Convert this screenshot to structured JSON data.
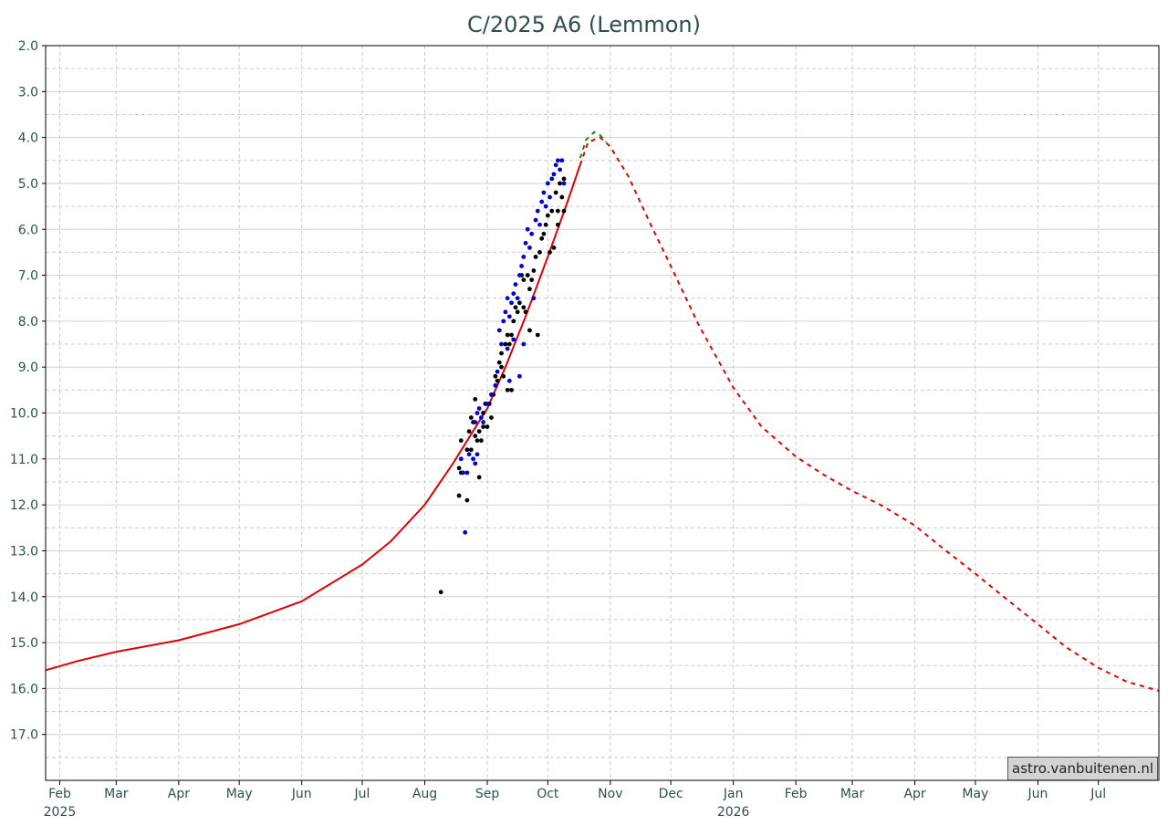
{
  "chart_data": {
    "type": "scatter",
    "title": "C/2025 A6 (Lemmon)",
    "xlabel": "",
    "ylabel": "",
    "x_range": [
      "2025-01-25",
      "2026-07-31"
    ],
    "ylim": [
      2.0,
      18.0
    ],
    "y_inverted": true,
    "y_ticks": [
      "2.0",
      "3.0",
      "4.0",
      "5.0",
      "6.0",
      "7.0",
      "8.0",
      "9.0",
      "10.0",
      "11.0",
      "12.0",
      "13.0",
      "14.0",
      "15.0",
      "16.0",
      "17.0"
    ],
    "x_ticks": [
      {
        "date": "2025-02-01",
        "label": "Feb",
        "year": "2025"
      },
      {
        "date": "2025-03-01",
        "label": "Mar",
        "year": ""
      },
      {
        "date": "2025-04-01",
        "label": "Apr",
        "year": ""
      },
      {
        "date": "2025-05-01",
        "label": "May",
        "year": ""
      },
      {
        "date": "2025-06-01",
        "label": "Jun",
        "year": ""
      },
      {
        "date": "2025-07-01",
        "label": "Jul",
        "year": ""
      },
      {
        "date": "2025-08-01",
        "label": "Aug",
        "year": ""
      },
      {
        "date": "2025-09-01",
        "label": "Sep",
        "year": ""
      },
      {
        "date": "2025-10-01",
        "label": "Oct",
        "year": ""
      },
      {
        "date": "2025-11-01",
        "label": "Nov",
        "year": ""
      },
      {
        "date": "2025-12-01",
        "label": "Dec",
        "year": ""
      },
      {
        "date": "2026-01-01",
        "label": "Jan",
        "year": "2026"
      },
      {
        "date": "2026-02-01",
        "label": "Feb",
        "year": ""
      },
      {
        "date": "2026-03-01",
        "label": "Mar",
        "year": ""
      },
      {
        "date": "2026-04-01",
        "label": "Apr",
        "year": ""
      },
      {
        "date": "2026-05-01",
        "label": "May",
        "year": ""
      },
      {
        "date": "2026-06-01",
        "label": "Jun",
        "year": ""
      },
      {
        "date": "2026-07-01",
        "label": "Jul",
        "year": ""
      }
    ],
    "grid": true,
    "series": [
      {
        "style": "solid",
        "color": "#e00000",
        "points": [
          [
            "2025-01-25",
            15.6
          ],
          [
            "2025-02-10",
            15.4
          ],
          [
            "2025-03-01",
            15.2
          ],
          [
            "2025-04-01",
            14.95
          ],
          [
            "2025-05-01",
            14.6
          ],
          [
            "2025-06-01",
            14.1
          ],
          [
            "2025-07-01",
            13.3
          ],
          [
            "2025-07-15",
            12.8
          ],
          [
            "2025-08-01",
            12.0
          ],
          [
            "2025-08-15",
            11.1
          ],
          [
            "2025-09-01",
            9.9
          ],
          [
            "2025-09-10",
            9.0
          ],
          [
            "2025-09-20",
            7.9
          ],
          [
            "2025-10-01",
            6.6
          ],
          [
            "2025-10-10",
            5.5
          ],
          [
            "2025-10-17",
            4.6
          ]
        ]
      },
      {
        "style": "dashed",
        "color": "#e00000",
        "points": [
          [
            "2025-10-17",
            4.6
          ],
          [
            "2025-10-21",
            4.1
          ],
          [
            "2025-10-27",
            4.0
          ],
          [
            "2025-11-01",
            4.2
          ],
          [
            "2025-11-10",
            4.85
          ],
          [
            "2025-11-20",
            5.8
          ],
          [
            "2025-12-01",
            6.8
          ],
          [
            "2025-12-15",
            8.1
          ],
          [
            "2026-01-01",
            9.45
          ],
          [
            "2026-01-15",
            10.3
          ],
          [
            "2026-02-01",
            10.95
          ],
          [
            "2026-02-15",
            11.35
          ],
          [
            "2026-03-01",
            11.7
          ],
          [
            "2026-03-15",
            12.0
          ],
          [
            "2026-04-01",
            12.45
          ],
          [
            "2026-04-15",
            12.95
          ],
          [
            "2026-05-01",
            13.5
          ],
          [
            "2026-05-15",
            14.0
          ],
          [
            "2026-06-01",
            14.6
          ],
          [
            "2026-06-15",
            15.1
          ],
          [
            "2026-07-01",
            15.55
          ],
          [
            "2026-07-15",
            15.85
          ],
          [
            "2026-07-31",
            16.05
          ]
        ]
      },
      {
        "style": "dashed",
        "color": "#1a8a1a",
        "points": [
          [
            "2025-10-17",
            4.45
          ],
          [
            "2025-10-20",
            4.05
          ],
          [
            "2025-10-24",
            3.88
          ],
          [
            "2025-10-27",
            3.95
          ],
          [
            "2025-10-30",
            4.1
          ]
        ]
      },
      {
        "style": "dots",
        "color": "#000000",
        "points": [
          [
            "2025-08-09",
            13.9
          ],
          [
            "2025-08-18",
            11.8
          ],
          [
            "2025-08-18",
            11.2
          ],
          [
            "2025-08-19",
            11.3
          ],
          [
            "2025-08-19",
            10.6
          ],
          [
            "2025-08-22",
            11.9
          ],
          [
            "2025-08-22",
            10.8
          ],
          [
            "2025-08-23",
            10.4
          ],
          [
            "2025-08-24",
            10.1
          ],
          [
            "2025-08-24",
            10.8
          ],
          [
            "2025-08-25",
            10.2
          ],
          [
            "2025-08-26",
            9.7
          ],
          [
            "2025-08-26",
            10.5
          ],
          [
            "2025-08-27",
            10.6
          ],
          [
            "2025-08-28",
            10.4
          ],
          [
            "2025-08-28",
            11.4
          ],
          [
            "2025-08-29",
            10.6
          ],
          [
            "2025-08-30",
            10.0
          ],
          [
            "2025-08-30",
            10.3
          ],
          [
            "2025-08-31",
            9.8
          ],
          [
            "2025-09-01",
            10.3
          ],
          [
            "2025-09-02",
            9.8
          ],
          [
            "2025-09-03",
            10.1
          ],
          [
            "2025-09-04",
            9.6
          ],
          [
            "2025-09-05",
            9.2
          ],
          [
            "2025-09-06",
            9.3
          ],
          [
            "2025-09-07",
            8.9
          ],
          [
            "2025-09-08",
            9.0
          ],
          [
            "2025-09-08",
            8.7
          ],
          [
            "2025-09-09",
            9.2
          ],
          [
            "2025-09-10",
            8.5
          ],
          [
            "2025-09-11",
            8.3
          ],
          [
            "2025-09-11",
            9.5
          ],
          [
            "2025-09-12",
            8.5
          ],
          [
            "2025-09-13",
            8.3
          ],
          [
            "2025-09-13",
            9.5
          ],
          [
            "2025-09-14",
            8.0
          ],
          [
            "2025-09-15",
            7.7
          ],
          [
            "2025-09-16",
            7.8
          ],
          [
            "2025-09-17",
            7.6
          ],
          [
            "2025-09-18",
            7.0
          ],
          [
            "2025-09-19",
            7.7
          ],
          [
            "2025-09-19",
            7.1
          ],
          [
            "2025-09-20",
            7.8
          ],
          [
            "2025-09-21",
            7.0
          ],
          [
            "2025-09-22",
            7.3
          ],
          [
            "2025-09-22",
            8.2
          ],
          [
            "2025-09-23",
            7.1
          ],
          [
            "2025-09-24",
            6.9
          ],
          [
            "2025-09-25",
            6.6
          ],
          [
            "2025-09-26",
            8.3
          ],
          [
            "2025-09-27",
            6.5
          ],
          [
            "2025-09-28",
            6.2
          ],
          [
            "2025-09-29",
            6.1
          ],
          [
            "2025-09-30",
            5.9
          ],
          [
            "2025-10-01",
            5.7
          ],
          [
            "2025-10-02",
            6.5
          ],
          [
            "2025-10-03",
            5.6
          ],
          [
            "2025-10-04",
            6.4
          ],
          [
            "2025-10-05",
            5.2
          ],
          [
            "2025-10-06",
            5.9
          ],
          [
            "2025-10-06",
            5.6
          ],
          [
            "2025-10-07",
            5.0
          ],
          [
            "2025-10-08",
            5.3
          ],
          [
            "2025-10-09",
            4.9
          ],
          [
            "2025-10-09",
            5.6
          ]
        ]
      },
      {
        "style": "dots",
        "color": "#0000dd",
        "points": [
          [
            "2025-08-21",
            12.6
          ],
          [
            "2025-08-19",
            11.0
          ],
          [
            "2025-08-20",
            11.3
          ],
          [
            "2025-08-22",
            11.3
          ],
          [
            "2025-08-23",
            10.9
          ],
          [
            "2025-08-25",
            11.0
          ],
          [
            "2025-08-26",
            11.1
          ],
          [
            "2025-08-27",
            10.9
          ],
          [
            "2025-08-26",
            10.2
          ],
          [
            "2025-08-27",
            10.0
          ],
          [
            "2025-08-28",
            9.9
          ],
          [
            "2025-08-29",
            10.1
          ],
          [
            "2025-08-30",
            10.2
          ],
          [
            "2025-09-01",
            9.8
          ],
          [
            "2025-09-03",
            9.6
          ],
          [
            "2025-09-05",
            9.4
          ],
          [
            "2025-09-06",
            9.1
          ],
          [
            "2025-09-07",
            8.2
          ],
          [
            "2025-09-08",
            8.5
          ],
          [
            "2025-09-09",
            8.0
          ],
          [
            "2025-09-10",
            7.8
          ],
          [
            "2025-09-11",
            7.5
          ],
          [
            "2025-09-12",
            7.9
          ],
          [
            "2025-09-13",
            7.6
          ],
          [
            "2025-09-14",
            7.4
          ],
          [
            "2025-09-15",
            7.2
          ],
          [
            "2025-09-16",
            7.5
          ],
          [
            "2025-09-17",
            7.0
          ],
          [
            "2025-09-18",
            6.8
          ],
          [
            "2025-09-19",
            6.6
          ],
          [
            "2025-09-20",
            6.3
          ],
          [
            "2025-09-21",
            6.0
          ],
          [
            "2025-09-22",
            6.4
          ],
          [
            "2025-09-23",
            6.1
          ],
          [
            "2025-09-24",
            7.5
          ],
          [
            "2025-09-25",
            5.8
          ],
          [
            "2025-09-26",
            5.6
          ],
          [
            "2025-09-27",
            5.9
          ],
          [
            "2025-09-28",
            5.4
          ],
          [
            "2025-09-29",
            5.2
          ],
          [
            "2025-09-30",
            5.5
          ],
          [
            "2025-10-01",
            5.0
          ],
          [
            "2025-10-02",
            5.3
          ],
          [
            "2025-10-03",
            4.9
          ],
          [
            "2025-10-04",
            4.8
          ],
          [
            "2025-10-05",
            4.6
          ],
          [
            "2025-10-06",
            4.5
          ],
          [
            "2025-10-07",
            4.7
          ],
          [
            "2025-10-08",
            4.5
          ],
          [
            "2025-10-09",
            5.0
          ],
          [
            "2025-09-11",
            8.6
          ],
          [
            "2025-09-14",
            8.4
          ],
          [
            "2025-09-17",
            9.2
          ],
          [
            "2025-09-12",
            9.3
          ],
          [
            "2025-09-19",
            8.5
          ]
        ]
      }
    ]
  },
  "credit": "astro.vanbuitenen.nl"
}
